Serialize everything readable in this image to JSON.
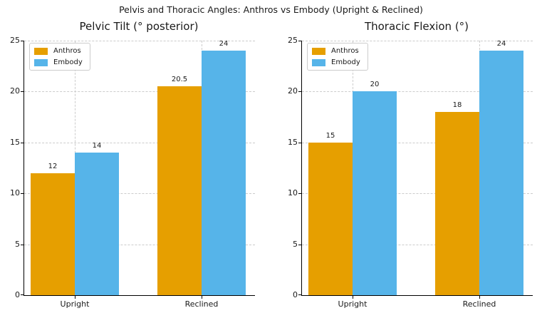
{
  "figure": {
    "title": "Pelvis and Thoracic Angles: Anthros vs Embody (Upright & Reclined)",
    "background": "#ffffff",
    "text_color": "#1a1a1a"
  },
  "colors": {
    "anthros": "#E69F00",
    "embody": "#56B4E9",
    "grid": "#cccccc",
    "spine": "#000000",
    "legend_border": "#cccccc",
    "legend_background": "#ffffff"
  },
  "legend": {
    "position": "upper left",
    "entries": [
      {
        "name": "Anthros",
        "color": "#E69F00"
      },
      {
        "name": "Embody",
        "color": "#56B4E9"
      }
    ]
  },
  "chart_data": [
    {
      "type": "bar",
      "title": "Pelvic Tilt (° posterior)",
      "categories": [
        "Upright",
        "Reclined"
      ],
      "series": [
        {
          "name": "Anthros",
          "color": "#E69F00",
          "values": [
            12,
            20.5
          ]
        },
        {
          "name": "Embody",
          "color": "#56B4E9",
          "values": [
            14,
            24
          ]
        }
      ],
      "value_labels": [
        [
          "12",
          "20.5"
        ],
        [
          "14",
          "24"
        ]
      ],
      "xlabel": "",
      "ylabel": "",
      "ylim": [
        0,
        25
      ],
      "yticks": [
        0,
        5,
        10,
        15,
        20,
        25
      ],
      "xtick_labels": [
        "Upright",
        "Reclined"
      ],
      "grid": true,
      "grid_style": "dashed",
      "legend_position": "upper left"
    },
    {
      "type": "bar",
      "title": "Thoracic Flexion (°)",
      "categories": [
        "Upright",
        "Reclined"
      ],
      "series": [
        {
          "name": "Anthros",
          "color": "#E69F00",
          "values": [
            15,
            18
          ]
        },
        {
          "name": "Embody",
          "color": "#56B4E9",
          "values": [
            20,
            24
          ]
        }
      ],
      "value_labels": [
        [
          "15",
          "18"
        ],
        [
          "20",
          "24"
        ]
      ],
      "xlabel": "",
      "ylabel": "",
      "ylim": [
        0,
        25
      ],
      "yticks": [
        0,
        5,
        10,
        15,
        20,
        25
      ],
      "xtick_labels": [
        "Upright",
        "Reclined"
      ],
      "grid": true,
      "grid_style": "dashed",
      "legend_position": "upper left"
    }
  ]
}
